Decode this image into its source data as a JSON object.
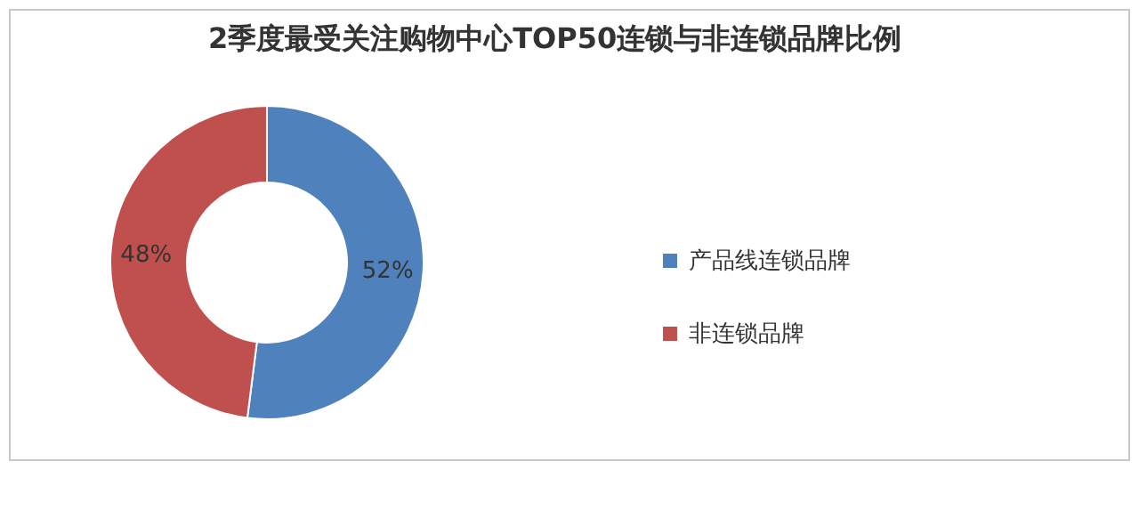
{
  "chart_data": {
    "type": "donut",
    "title": "2季度最受关注购物中心TOP50连锁与非连锁品牌比例",
    "categories": [
      "产品线连锁品牌",
      "非连锁品牌"
    ],
    "values": [
      52,
      48
    ],
    "colors": [
      "#4f81bd",
      "#c0504d"
    ],
    "value_labels": [
      "52%",
      "48%"
    ],
    "legend": "right"
  }
}
